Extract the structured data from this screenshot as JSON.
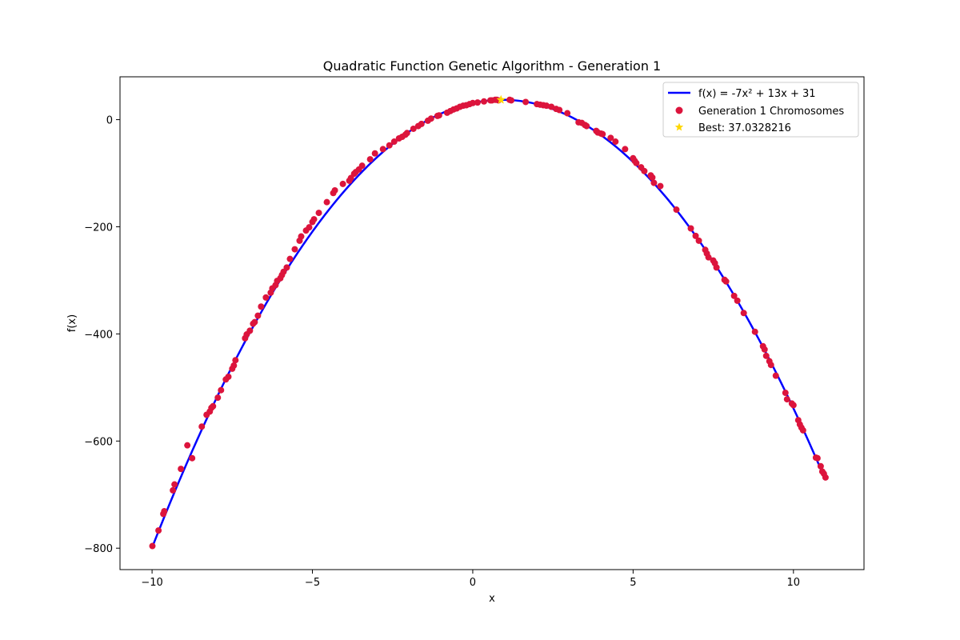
{
  "chart_data": {
    "type": "scatter",
    "title": "Quadratic Function Genetic Algorithm - Generation 1",
    "xlabel": "x",
    "ylabel": "f(x)",
    "xlim": [
      -11,
      12.2
    ],
    "ylim": [
      -840,
      80
    ],
    "grid": false,
    "legend_position": "top-right",
    "x_ticks": [
      -10,
      -5,
      0,
      5,
      10
    ],
    "x_tick_labels": [
      "−10",
      "−5",
      "0",
      "5",
      "10"
    ],
    "y_ticks": [
      -800,
      -600,
      -400,
      -200,
      0
    ],
    "y_tick_labels": [
      "−800",
      "−600",
      "−400",
      "−200",
      "0"
    ],
    "curve": {
      "name": "f(x) = -7x² + 13x + 31",
      "coefficients": {
        "a": -7,
        "b": 13,
        "c": 31
      },
      "x_range": [
        -10,
        11
      ],
      "color": "#0000ff"
    },
    "series": [
      {
        "name": "Generation 1 Chromosomes",
        "color": "#dc143c",
        "x": [
          -9.99,
          -9.8,
          -9.65,
          -9.62,
          -9.35,
          -9.3,
          -9.1,
          -8.9,
          -8.75,
          -8.45,
          -8.3,
          -8.2,
          -8.15,
          -8.1,
          -7.95,
          -7.85,
          -7.7,
          -7.62,
          -7.5,
          -7.45,
          -7.4,
          -7.1,
          -7.05,
          -6.95,
          -6.85,
          -6.8,
          -6.7,
          -6.6,
          -6.45,
          -6.3,
          -6.25,
          -6.15,
          -6.1,
          -6.0,
          -5.95,
          -5.9,
          -5.8,
          -5.7,
          -5.55,
          -5.4,
          -5.35,
          -5.2,
          -5.1,
          -5.0,
          -4.95,
          -4.8,
          -4.55,
          -4.35,
          -4.3,
          -4.05,
          -3.85,
          -3.8,
          -3.7,
          -3.65,
          -3.55,
          -3.45,
          -3.2,
          -3.05,
          -2.8,
          -2.6,
          -2.45,
          -2.3,
          -2.2,
          -2.1,
          -2.05,
          -1.85,
          -1.7,
          -1.6,
          -1.4,
          -1.3,
          -1.1,
          -1.05,
          -0.8,
          -0.7,
          -0.6,
          -0.5,
          -0.4,
          -0.3,
          -0.2,
          -0.1,
          0.0,
          0.15,
          0.35,
          0.55,
          0.6,
          0.7,
          0.75,
          0.8,
          1.15,
          1.2,
          1.65,
          2.0,
          2.1,
          2.2,
          2.3,
          2.45,
          2.6,
          2.7,
          2.95,
          3.3,
          3.4,
          3.5,
          3.55,
          3.85,
          3.9,
          4.0,
          4.05,
          4.3,
          4.45,
          4.75,
          5.0,
          5.05,
          5.1,
          5.25,
          5.35,
          5.55,
          5.6,
          5.65,
          5.85,
          6.35,
          6.8,
          6.95,
          7.05,
          7.25,
          7.3,
          7.35,
          7.5,
          7.55,
          7.6,
          7.85,
          7.9,
          8.15,
          8.25,
          8.45,
          8.8,
          9.05,
          9.1,
          9.15,
          9.25,
          9.3,
          9.45,
          9.75,
          9.8,
          9.95,
          10.0,
          10.15,
          10.2,
          10.25,
          10.3,
          10.7,
          10.75,
          10.85,
          10.9,
          10.95,
          11.0
        ],
        "y": [
          -796,
          -767,
          -736,
          -731,
          -692,
          -681,
          -652,
          -608,
          -632,
          -573,
          -551,
          -545,
          -538,
          -535,
          -519,
          -505,
          -485,
          -480,
          -465,
          -459,
          -449,
          -408,
          -401,
          -394,
          -381,
          -378,
          -366,
          -349,
          -332,
          -323,
          -315,
          -309,
          -301,
          -296,
          -290,
          -284,
          -276,
          -260,
          -242,
          -226,
          -218,
          -207,
          -201,
          -191,
          -186,
          -174,
          -154,
          -137,
          -132,
          -120,
          -114,
          -109,
          -101,
          -98,
          -93,
          -86,
          -74,
          -63,
          -55,
          -48,
          -41,
          -35,
          -32,
          -28,
          -25,
          -17,
          -12,
          -8,
          -2,
          2,
          7,
          8,
          13,
          16,
          19,
          21,
          24,
          26,
          27,
          29,
          31,
          32,
          34,
          36,
          36,
          37,
          37,
          36,
          37,
          36,
          33,
          29,
          28,
          27,
          26,
          24,
          20,
          18,
          12,
          -5,
          -6,
          -10,
          -12,
          -21,
          -24,
          -26,
          -27,
          -34,
          -41,
          -55,
          -72,
          -77,
          -81,
          -89,
          -96,
          -104,
          -108,
          -118,
          -124,
          -168,
          -203,
          -217,
          -226,
          -243,
          -250,
          -257,
          -263,
          -268,
          -276,
          -299,
          -302,
          -329,
          -338,
          -361,
          -396,
          -423,
          -429,
          -441,
          -451,
          -458,
          -478,
          -510,
          -522,
          -530,
          -533,
          -561,
          -569,
          -575,
          -580,
          -631,
          -632,
          -647,
          -657,
          -661,
          -668
        ]
      },
      {
        "name": "Best: 37.0328216",
        "color": "#ffd700",
        "marker": "star",
        "x": [
          0.88
        ],
        "y": [
          37.03
        ]
      }
    ]
  }
}
